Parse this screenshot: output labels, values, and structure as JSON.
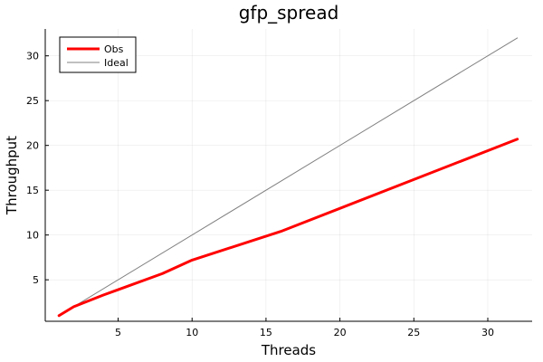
{
  "chart_data": {
    "type": "line",
    "title": "gfp_spread",
    "xlabel": "Threads",
    "ylabel": "Throughput",
    "xlim": [
      0.07,
      33.0
    ],
    "ylim": [
      0.37,
      33.0
    ],
    "xticks": [
      5,
      10,
      15,
      20,
      25,
      30
    ],
    "yticks": [
      5,
      10,
      15,
      20,
      25,
      30
    ],
    "grid": true,
    "legend_position": "top-left",
    "series": [
      {
        "name": "Obs",
        "color": "#ff0000",
        "x": [
          1,
          2,
          4,
          8,
          10,
          16,
          32
        ],
        "y": [
          1.0,
          2.0,
          3.3,
          5.7,
          7.2,
          10.4,
          20.7
        ]
      },
      {
        "name": "Ideal",
        "color": "#808080",
        "x": [
          1,
          32
        ],
        "y": [
          1,
          32
        ]
      }
    ]
  }
}
